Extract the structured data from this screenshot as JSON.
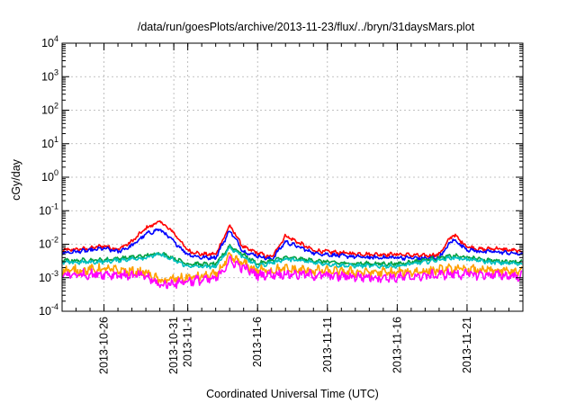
{
  "chart_data": {
    "type": "line",
    "title": "/data/run/goesPlots/archive/2013-11-23/flux/../bryn/31daysMars.plot",
    "xlabel": "Coordinated Universal Time (UTC)",
    "ylabel": "cGy/day",
    "yscale": "log",
    "ylim": [
      0.0001,
      10000
    ],
    "xlim": [
      "2013-10-23",
      "2013-11-25"
    ],
    "grid": true,
    "y_ticks": [
      {
        "value": 0.0001,
        "base": "10",
        "exp": "-4"
      },
      {
        "value": 0.001,
        "base": "10",
        "exp": "-3"
      },
      {
        "value": 0.01,
        "base": "10",
        "exp": "-2"
      },
      {
        "value": 0.1,
        "base": "10",
        "exp": "-1"
      },
      {
        "value": 1,
        "base": "10",
        "exp": "0"
      },
      {
        "value": 10,
        "base": "10",
        "exp": "1"
      },
      {
        "value": 100,
        "base": "10",
        "exp": "2"
      },
      {
        "value": 1000,
        "base": "10",
        "exp": "3"
      },
      {
        "value": 10000,
        "base": "10",
        "exp": "4"
      }
    ],
    "x_ticks": [
      {
        "date": "2013-10-26",
        "label": "2013-10-26"
      },
      {
        "date": "2013-10-31",
        "label": "2013-10-31"
      },
      {
        "date": "2013-11-01",
        "label": "2013-11-1"
      },
      {
        "date": "2013-11-06",
        "label": "2013-11-6"
      },
      {
        "date": "2013-11-11",
        "label": "2013-11-11"
      },
      {
        "date": "2013-11-16",
        "label": "2013-11-16"
      },
      {
        "date": "2013-11-21",
        "label": "2013-11-21"
      }
    ],
    "series": [
      {
        "color": "#ff0000",
        "x": [
          "2013-10-23",
          "2013-10-25",
          "2013-10-26",
          "2013-10-27",
          "2013-10-28",
          "2013-10-29",
          "2013-10-30",
          "2013-10-31",
          "2013-11-01",
          "2013-11-02",
          "2013-11-03",
          "2013-11-04",
          "2013-11-05",
          "2013-11-06",
          "2013-11-07",
          "2013-11-08",
          "2013-11-10",
          "2013-11-12",
          "2013-11-14",
          "2013-11-16",
          "2013-11-18",
          "2013-11-19",
          "2013-11-20",
          "2013-11-21",
          "2013-11-22",
          "2013-11-23",
          "2013-11-25"
        ],
        "values": [
          0.0065,
          0.0075,
          0.009,
          0.007,
          0.012,
          0.03,
          0.048,
          0.022,
          0.0065,
          0.005,
          0.005,
          0.036,
          0.008,
          0.0055,
          0.004,
          0.018,
          0.0065,
          0.0055,
          0.005,
          0.005,
          0.0045,
          0.005,
          0.02,
          0.0085,
          0.007,
          0.0075,
          0.006
        ]
      },
      {
        "color": "#0000ff",
        "x": [
          "2013-10-23",
          "2013-10-25",
          "2013-10-26",
          "2013-10-27",
          "2013-10-28",
          "2013-10-29",
          "2013-10-30",
          "2013-10-31",
          "2013-11-01",
          "2013-11-02",
          "2013-11-03",
          "2013-11-04",
          "2013-11-05",
          "2013-11-06",
          "2013-11-07",
          "2013-11-08",
          "2013-11-10",
          "2013-11-12",
          "2013-11-14",
          "2013-11-16",
          "2013-11-18",
          "2013-11-19",
          "2013-11-20",
          "2013-11-21",
          "2013-11-22",
          "2013-11-23",
          "2013-11-25"
        ],
        "values": [
          0.0055,
          0.0065,
          0.0075,
          0.006,
          0.009,
          0.02,
          0.028,
          0.012,
          0.005,
          0.004,
          0.004,
          0.026,
          0.006,
          0.0045,
          0.0035,
          0.012,
          0.0055,
          0.0045,
          0.004,
          0.004,
          0.0038,
          0.004,
          0.014,
          0.007,
          0.006,
          0.006,
          0.005
        ]
      },
      {
        "color": "#00a040",
        "x": [
          "2013-10-23",
          "2013-10-26",
          "2013-10-29",
          "2013-10-30",
          "2013-11-01",
          "2013-11-03",
          "2013-11-04",
          "2013-11-06",
          "2013-11-08",
          "2013-11-12",
          "2013-11-16",
          "2013-11-20",
          "2013-11-23",
          "2013-11-25"
        ],
        "values": [
          0.0032,
          0.0034,
          0.0045,
          0.0055,
          0.0026,
          0.0025,
          0.009,
          0.0026,
          0.004,
          0.0027,
          0.0026,
          0.0045,
          0.0032,
          0.003
        ]
      },
      {
        "color": "#00c0c0",
        "x": [
          "2013-10-23",
          "2013-10-26",
          "2013-10-29",
          "2013-10-30",
          "2013-11-01",
          "2013-11-03",
          "2013-11-04",
          "2013-11-06",
          "2013-11-08",
          "2013-11-12",
          "2013-11-16",
          "2013-11-20",
          "2013-11-23",
          "2013-11-25"
        ],
        "values": [
          0.0028,
          0.003,
          0.004,
          0.005,
          0.0022,
          0.0021,
          0.008,
          0.0022,
          0.0036,
          0.0023,
          0.0022,
          0.004,
          0.0028,
          0.0026
        ]
      },
      {
        "color": "#ffa000",
        "x": [
          "2013-10-23",
          "2013-10-26",
          "2013-10-29",
          "2013-10-30",
          "2013-11-01",
          "2013-11-03",
          "2013-11-04",
          "2013-11-06",
          "2013-11-08",
          "2013-11-12",
          "2013-11-16",
          "2013-11-20",
          "2013-11-23",
          "2013-11-25"
        ],
        "values": [
          0.0016,
          0.0018,
          0.0014,
          0.0008,
          0.001,
          0.0012,
          0.0042,
          0.0016,
          0.0018,
          0.0015,
          0.0014,
          0.0018,
          0.0016,
          0.0015
        ]
      },
      {
        "color": "#ff00ff",
        "x": [
          "2013-10-23",
          "2013-10-26",
          "2013-10-29",
          "2013-10-30",
          "2013-11-01",
          "2013-11-03",
          "2013-11-04",
          "2013-11-06",
          "2013-11-08",
          "2013-11-12",
          "2013-11-16",
          "2013-11-20",
          "2013-11-23",
          "2013-11-25"
        ],
        "values": [
          0.0012,
          0.0013,
          0.0011,
          0.0006,
          0.0008,
          0.0009,
          0.0032,
          0.0012,
          0.0013,
          0.0011,
          0.001,
          0.0013,
          0.0012,
          0.0011
        ]
      }
    ]
  }
}
